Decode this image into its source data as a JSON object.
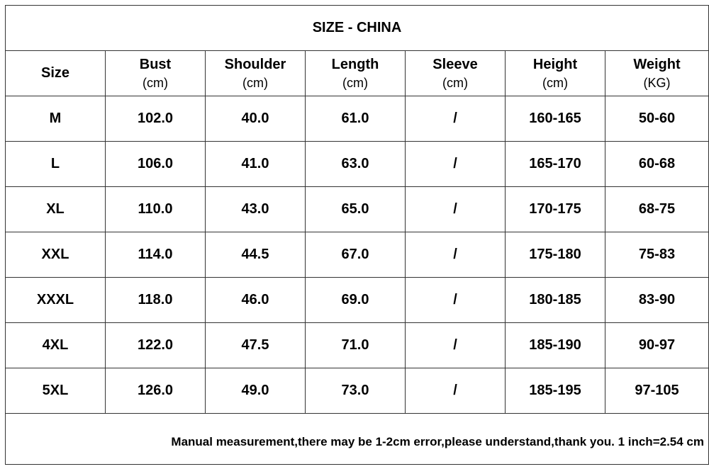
{
  "table": {
    "title": "SIZE - CHINA",
    "headers": [
      {
        "name": "Size"
      },
      {
        "name": "Bust",
        "unit": "(cm)"
      },
      {
        "name": "Shoulder",
        "unit": "(cm)"
      },
      {
        "name": "Length",
        "unit": "(cm)"
      },
      {
        "name": "Sleeve",
        "unit": "(cm)"
      },
      {
        "name": "Height",
        "unit": "(cm)"
      },
      {
        "name": "Weight",
        "unit": "(KG)"
      }
    ],
    "rows": [
      [
        "M",
        "102.0",
        "40.0",
        "61.0",
        "/",
        "160-165",
        "50-60"
      ],
      [
        "L",
        "106.0",
        "41.0",
        "63.0",
        "/",
        "165-170",
        "60-68"
      ],
      [
        "XL",
        "110.0",
        "43.0",
        "65.0",
        "/",
        "170-175",
        "68-75"
      ],
      [
        "XXL",
        "114.0",
        "44.5",
        "67.0",
        "/",
        "175-180",
        "75-83"
      ],
      [
        "XXXL",
        "118.0",
        "46.0",
        "69.0",
        "/",
        "180-185",
        "83-90"
      ],
      [
        "4XL",
        "122.0",
        "47.5",
        "71.0",
        "/",
        "185-190",
        "90-97"
      ],
      [
        "5XL",
        "126.0",
        "49.0",
        "73.0",
        "/",
        "185-195",
        "97-105"
      ]
    ],
    "note": "Manual measurement,there may be 1-2cm error,please understand,thank you. 1 inch=2.54 cm"
  }
}
